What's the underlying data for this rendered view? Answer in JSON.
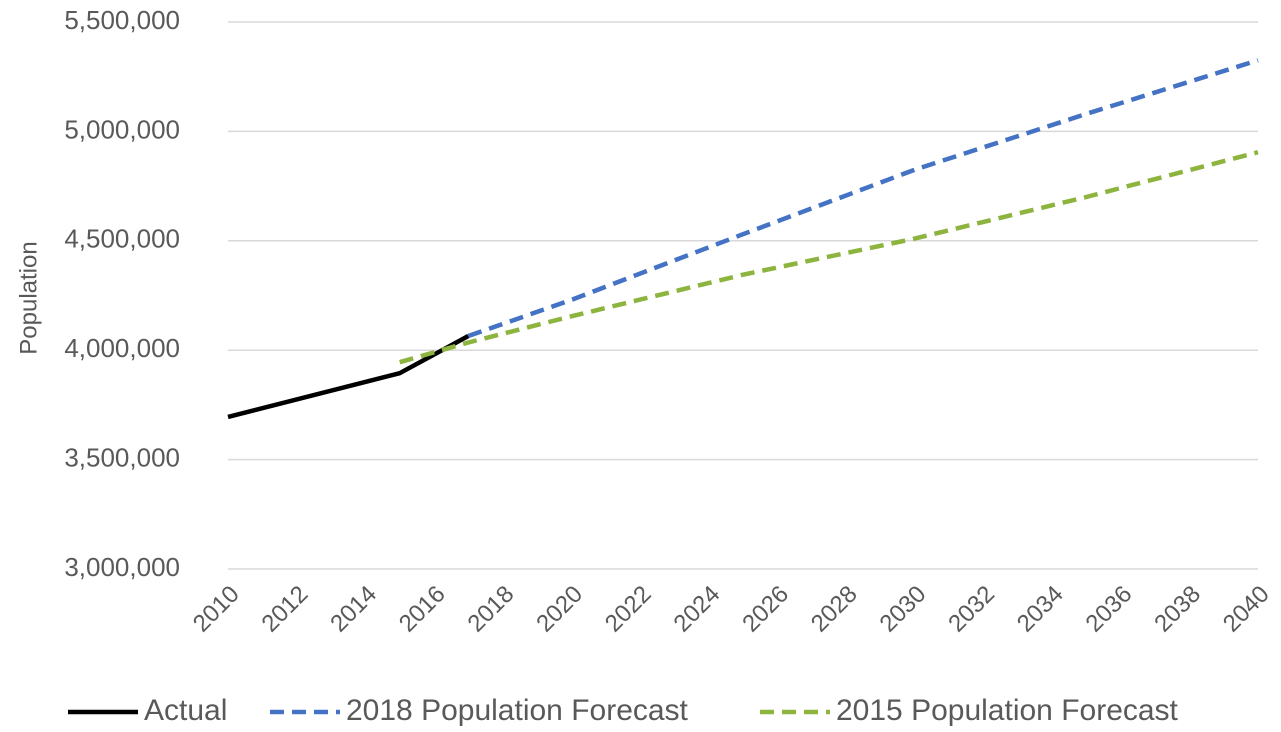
{
  "chart_data": {
    "type": "line",
    "title": "",
    "xlabel": "",
    "ylabel": "Population",
    "xlim": [
      2010,
      2040
    ],
    "ylim": [
      3000000,
      5500000
    ],
    "grid": true,
    "legend_position": "bottom",
    "x_ticks": [
      "2010",
      "2012",
      "2014",
      "2016",
      "2018",
      "2020",
      "2022",
      "2024",
      "2026",
      "2028",
      "2030",
      "2032",
      "2034",
      "2036",
      "2038",
      "2040"
    ],
    "y_ticks": [
      "3,000,000",
      "3,500,000",
      "4,000,000",
      "4,500,000",
      "5,000,000",
      "5,500,000"
    ],
    "series": [
      {
        "name": "Actual",
        "color": "#000000",
        "dash": "solid",
        "points": [
          [
            2010,
            3695000
          ],
          [
            2015,
            3895000
          ],
          [
            2017,
            4065000
          ]
        ]
      },
      {
        "name": "2018 Population Forecast",
        "color": "#4472C4",
        "dash": "dashed",
        "points": [
          [
            2017,
            4065000
          ],
          [
            2020,
            4230000
          ],
          [
            2025,
            4530000
          ],
          [
            2030,
            4825000
          ],
          [
            2035,
            5080000
          ],
          [
            2040,
            5325000
          ]
        ]
      },
      {
        "name": "2015 Population Forecast",
        "color": "#8DB43E",
        "dash": "dashed",
        "points": [
          [
            2015,
            3945000
          ],
          [
            2017,
            4035000
          ],
          [
            2020,
            4155000
          ],
          [
            2025,
            4345000
          ],
          [
            2030,
            4510000
          ],
          [
            2035,
            4700000
          ],
          [
            2040,
            4905000
          ]
        ]
      }
    ]
  }
}
